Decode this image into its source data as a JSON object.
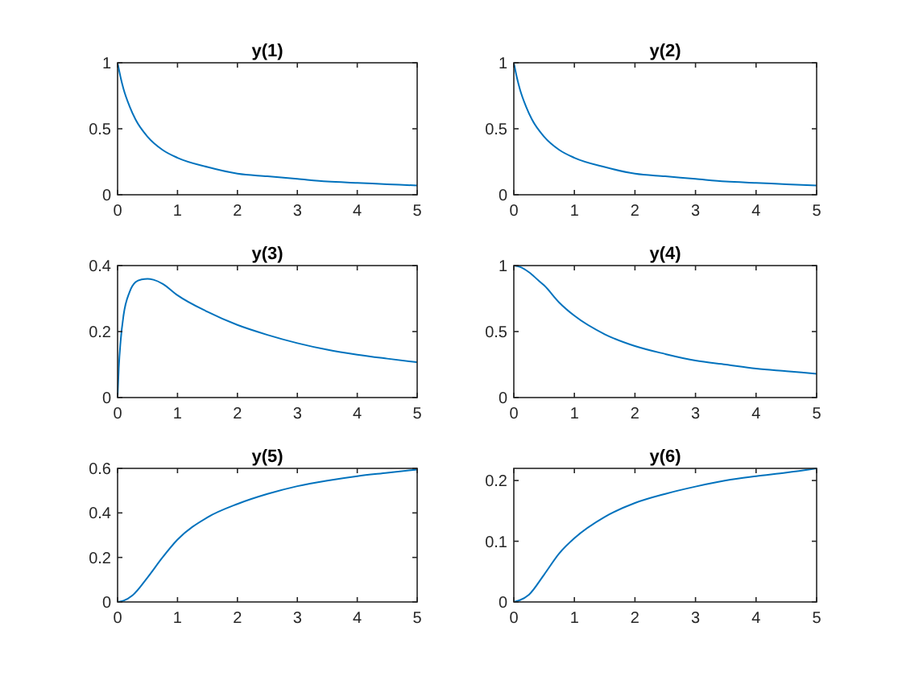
{
  "chart_data": [
    {
      "type": "line",
      "title": "y(1)",
      "x": [
        0,
        0.05,
        0.1,
        0.2,
        0.3,
        0.5,
        0.75,
        1,
        1.5,
        2,
        2.5,
        3,
        3.5,
        4,
        4.5,
        5
      ],
      "series": [
        {
          "color": "#0072bd",
          "values": [
            1,
            0.89,
            0.8,
            0.67,
            0.57,
            0.44,
            0.34,
            0.28,
            0.21,
            0.16,
            0.14,
            0.12,
            0.1,
            0.09,
            0.08,
            0.07
          ]
        }
      ],
      "xlim": [
        0,
        5
      ],
      "ylim": [
        0,
        1
      ],
      "xticks": [
        0,
        1,
        2,
        3,
        4,
        5
      ],
      "yticks": [
        0,
        0.5,
        1
      ]
    },
    {
      "type": "line",
      "title": "y(2)",
      "x": [
        0,
        0.05,
        0.1,
        0.2,
        0.3,
        0.5,
        0.75,
        1,
        1.5,
        2,
        2.5,
        3,
        3.5,
        4,
        4.5,
        5
      ],
      "series": [
        {
          "color": "#0072bd",
          "values": [
            1,
            0.89,
            0.8,
            0.67,
            0.57,
            0.44,
            0.34,
            0.28,
            0.21,
            0.16,
            0.14,
            0.12,
            0.1,
            0.09,
            0.08,
            0.07
          ]
        }
      ],
      "xlim": [
        0,
        5
      ],
      "ylim": [
        0,
        1
      ],
      "xticks": [
        0,
        1,
        2,
        3,
        4,
        5
      ],
      "yticks": [
        0,
        0.5,
        1
      ]
    },
    {
      "type": "line",
      "title": "y(3)",
      "x": [
        0,
        0.02,
        0.05,
        0.1,
        0.2,
        0.3,
        0.4,
        0.5,
        0.6,
        0.75,
        1,
        1.5,
        2,
        2.5,
        3,
        3.5,
        4,
        4.5,
        5
      ],
      "series": [
        {
          "color": "#0072bd",
          "values": [
            0,
            0.09,
            0.17,
            0.25,
            0.32,
            0.35,
            0.358,
            0.36,
            0.357,
            0.345,
            0.31,
            0.26,
            0.22,
            0.19,
            0.165,
            0.145,
            0.13,
            0.118,
            0.107
          ]
        }
      ],
      "xlim": [
        0,
        5
      ],
      "ylim": [
        0,
        0.4
      ],
      "xticks": [
        0,
        1,
        2,
        3,
        4,
        5
      ],
      "yticks": [
        0,
        0.2,
        0.4
      ]
    },
    {
      "type": "line",
      "title": "y(4)",
      "x": [
        0,
        0.1,
        0.25,
        0.4,
        0.5,
        0.75,
        1,
        1.5,
        2,
        2.5,
        3,
        3.5,
        4,
        4.5,
        5
      ],
      "series": [
        {
          "color": "#0072bd",
          "values": [
            1,
            0.99,
            0.95,
            0.89,
            0.85,
            0.72,
            0.62,
            0.48,
            0.39,
            0.33,
            0.28,
            0.25,
            0.22,
            0.2,
            0.18
          ]
        }
      ],
      "xlim": [
        0,
        5
      ],
      "ylim": [
        0,
        1
      ],
      "xticks": [
        0,
        1,
        2,
        3,
        4,
        5
      ],
      "yticks": [
        0,
        0.5,
        1
      ]
    },
    {
      "type": "line",
      "title": "y(5)",
      "x": [
        0,
        0.1,
        0.25,
        0.5,
        0.75,
        1,
        1.5,
        2,
        2.5,
        3,
        3.5,
        4,
        4.5,
        5
      ],
      "series": [
        {
          "color": "#0072bd",
          "values": [
            0,
            0.006,
            0.03,
            0.11,
            0.2,
            0.28,
            0.38,
            0.44,
            0.485,
            0.52,
            0.545,
            0.565,
            0.58,
            0.595
          ]
        }
      ],
      "xlim": [
        0,
        5
      ],
      "ylim": [
        0,
        0.6
      ],
      "xticks": [
        0,
        1,
        2,
        3,
        4,
        5
      ],
      "yticks": [
        0,
        0.2,
        0.4,
        0.6
      ]
    },
    {
      "type": "line",
      "title": "y(6)",
      "x": [
        0,
        0.1,
        0.25,
        0.5,
        0.75,
        1,
        1.5,
        2,
        2.5,
        3,
        3.5,
        4,
        4.5,
        5
      ],
      "series": [
        {
          "color": "#0072bd",
          "values": [
            0,
            0.003,
            0.012,
            0.045,
            0.08,
            0.105,
            0.14,
            0.163,
            0.178,
            0.19,
            0.2,
            0.207,
            0.213,
            0.22
          ]
        }
      ],
      "xlim": [
        0,
        5
      ],
      "ylim": [
        0,
        0.22
      ],
      "xticks": [
        0,
        1,
        2,
        3,
        4,
        5
      ],
      "yticks": [
        0,
        0.1,
        0.2
      ]
    }
  ]
}
